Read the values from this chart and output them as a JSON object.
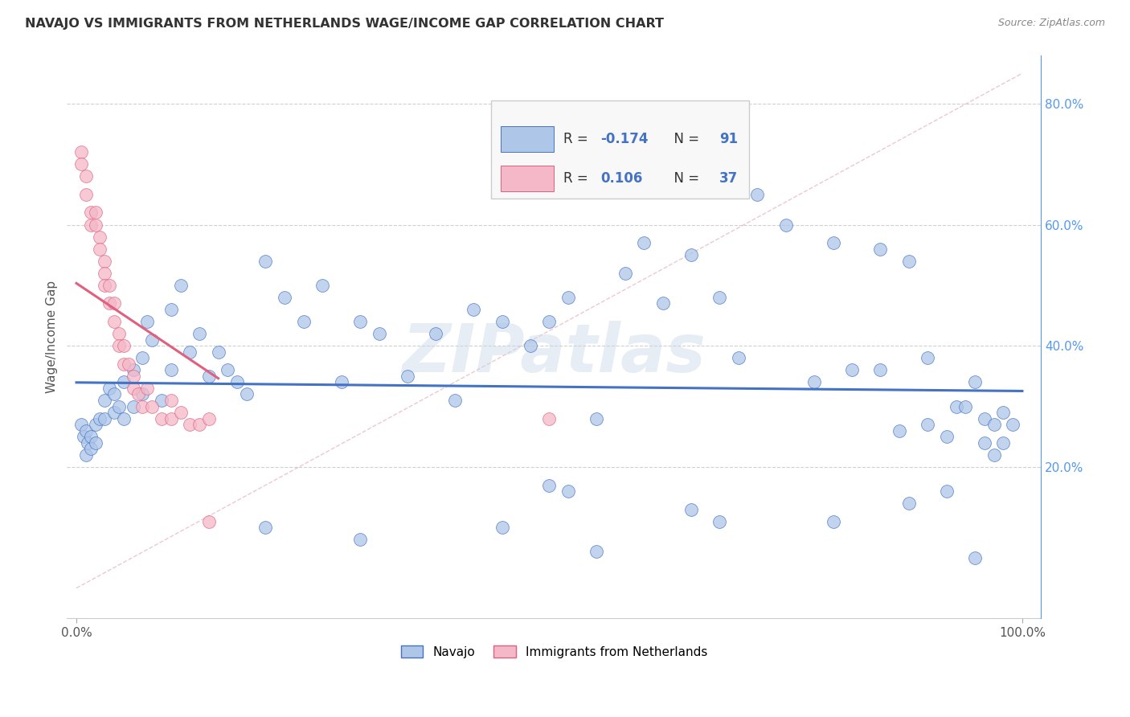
{
  "title": "NAVAJO VS IMMIGRANTS FROM NETHERLANDS WAGE/INCOME GAP CORRELATION CHART",
  "source": "Source: ZipAtlas.com",
  "ylabel": "Wage/Income Gap",
  "watermark": "ZIPatlas",
  "legend_label1": "Navajo",
  "legend_label2": "Immigrants from Netherlands",
  "R1": -0.174,
  "N1": 91,
  "R2": 0.106,
  "N2": 37,
  "color_blue": "#aec6e8",
  "color_pink": "#f4b8c8",
  "trendline_blue": "#4472c4",
  "trendline_pink": "#e06080",
  "navajo_x": [
    0.005,
    0.008,
    0.01,
    0.01,
    0.012,
    0.015,
    0.015,
    0.02,
    0.02,
    0.025,
    0.03,
    0.03,
    0.035,
    0.04,
    0.04,
    0.045,
    0.05,
    0.05,
    0.06,
    0.06,
    0.07,
    0.07,
    0.075,
    0.08,
    0.09,
    0.1,
    0.1,
    0.11,
    0.12,
    0.13,
    0.14,
    0.15,
    0.16,
    0.17,
    0.18,
    0.2,
    0.22,
    0.24,
    0.26,
    0.28,
    0.3,
    0.32,
    0.35,
    0.38,
    0.4,
    0.42,
    0.45,
    0.48,
    0.5,
    0.52,
    0.5,
    0.55,
    0.58,
    0.6,
    0.62,
    0.65,
    0.68,
    0.7,
    0.72,
    0.75,
    0.78,
    0.8,
    0.82,
    0.85,
    0.85,
    0.87,
    0.88,
    0.9,
    0.9,
    0.92,
    0.93,
    0.94,
    0.95,
    0.96,
    0.96,
    0.97,
    0.97,
    0.98,
    0.98,
    0.99,
    0.2,
    0.3,
    0.45,
    0.55,
    0.68,
    0.8,
    0.88,
    0.92,
    0.95,
    0.52,
    0.65
  ],
  "navajo_y": [
    0.27,
    0.25,
    0.26,
    0.22,
    0.24,
    0.25,
    0.23,
    0.27,
    0.24,
    0.28,
    0.31,
    0.28,
    0.33,
    0.29,
    0.32,
    0.3,
    0.34,
    0.28,
    0.36,
    0.3,
    0.38,
    0.32,
    0.44,
    0.41,
    0.31,
    0.46,
    0.36,
    0.5,
    0.39,
    0.42,
    0.35,
    0.39,
    0.36,
    0.34,
    0.32,
    0.54,
    0.48,
    0.44,
    0.5,
    0.34,
    0.44,
    0.42,
    0.35,
    0.42,
    0.31,
    0.46,
    0.44,
    0.4,
    0.44,
    0.48,
    0.17,
    0.28,
    0.52,
    0.57,
    0.47,
    0.55,
    0.48,
    0.38,
    0.65,
    0.6,
    0.34,
    0.57,
    0.36,
    0.56,
    0.36,
    0.26,
    0.54,
    0.38,
    0.27,
    0.25,
    0.3,
    0.3,
    0.34,
    0.28,
    0.24,
    0.27,
    0.22,
    0.24,
    0.29,
    0.27,
    0.1,
    0.08,
    0.1,
    0.06,
    0.11,
    0.11,
    0.14,
    0.16,
    0.05,
    0.16,
    0.13
  ],
  "netherlands_x": [
    0.005,
    0.005,
    0.01,
    0.01,
    0.015,
    0.015,
    0.02,
    0.02,
    0.025,
    0.025,
    0.03,
    0.03,
    0.03,
    0.035,
    0.035,
    0.04,
    0.04,
    0.045,
    0.045,
    0.05,
    0.05,
    0.055,
    0.06,
    0.06,
    0.065,
    0.07,
    0.075,
    0.08,
    0.09,
    0.1,
    0.1,
    0.11,
    0.12,
    0.13,
    0.14,
    0.5,
    0.14
  ],
  "netherlands_y": [
    0.72,
    0.7,
    0.65,
    0.68,
    0.6,
    0.62,
    0.62,
    0.6,
    0.58,
    0.56,
    0.54,
    0.52,
    0.5,
    0.5,
    0.47,
    0.47,
    0.44,
    0.42,
    0.4,
    0.4,
    0.37,
    0.37,
    0.35,
    0.33,
    0.32,
    0.3,
    0.33,
    0.3,
    0.28,
    0.31,
    0.28,
    0.29,
    0.27,
    0.27,
    0.28,
    0.28,
    0.11
  ],
  "background_color": "#ffffff",
  "grid_color": "#d0d0d0",
  "yticks": [
    0.2,
    0.4,
    0.6,
    0.8
  ],
  "ytick_labels": [
    "20.0%",
    "40.0%",
    "60.0%",
    "80.0%"
  ],
  "xlim": [
    -0.01,
    1.02
  ],
  "ylim": [
    -0.05,
    0.88
  ]
}
